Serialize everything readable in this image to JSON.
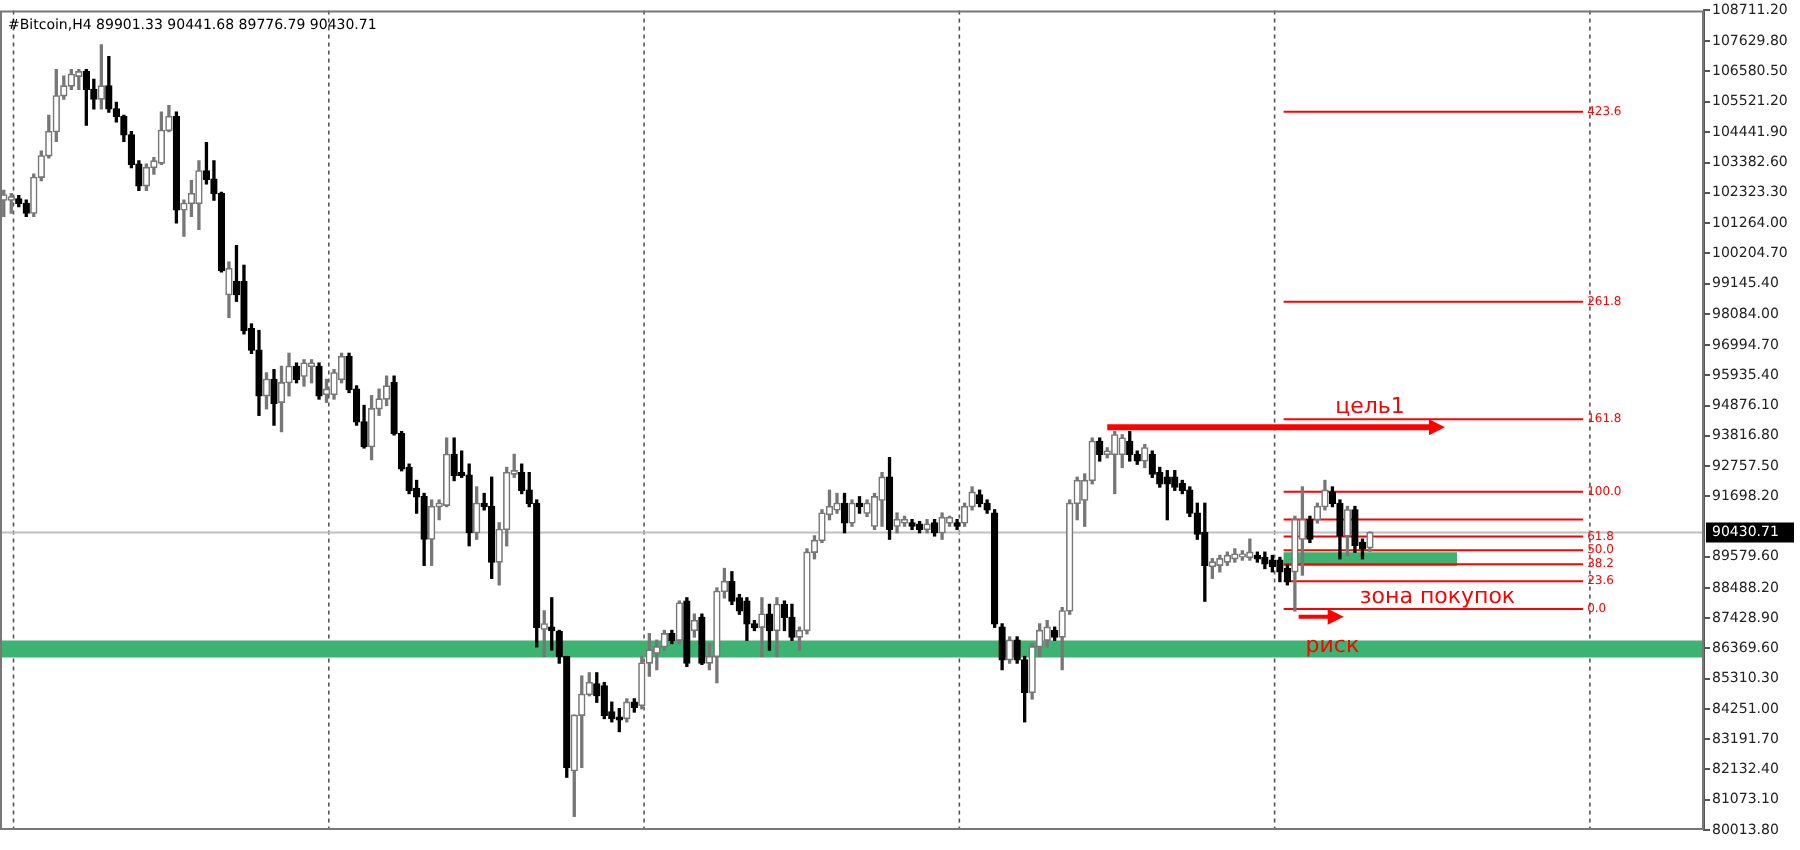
{
  "chart_data": {
    "type": "candlestick",
    "title": "#Bitcoin,H4 89901.33 90441.68 89776.79 90430.71",
    "categories": [
      null,
      null,
      null,
      null,
      null,
      null,
      null,
      null,
      null,
      null,
      null,
      null,
      null,
      null,
      null,
      null,
      null,
      null,
      null,
      null,
      null,
      null,
      null,
      null,
      null,
      null,
      null,
      null,
      null,
      null,
      null,
      null,
      null,
      null,
      null,
      null,
      null,
      null,
      null,
      null,
      null,
      null,
      null,
      null,
      null,
      null,
      null,
      null,
      null,
      null,
      null,
      null,
      null,
      null,
      null,
      null,
      null,
      null,
      null,
      null,
      null,
      null,
      null,
      null,
      null,
      null,
      null,
      null,
      null,
      null,
      null,
      null,
      null,
      null,
      null,
      null,
      null,
      null,
      null,
      null,
      null,
      null,
      null,
      null,
      null,
      null,
      null,
      null,
      null,
      null,
      null,
      null,
      null,
      null,
      null,
      null,
      null,
      null,
      null,
      null,
      null,
      null,
      null,
      null,
      null,
      null,
      null,
      null,
      null,
      null,
      null,
      null,
      null,
      null,
      null,
      null,
      null,
      null,
      null,
      null,
      null,
      null,
      null,
      null,
      null,
      null,
      null,
      null,
      null,
      null,
      null,
      null,
      null,
      null,
      null,
      null,
      null,
      null,
      null,
      null,
      null,
      null,
      null,
      null,
      null,
      null,
      null,
      null,
      null,
      null,
      null,
      null,
      null,
      null,
      null,
      null,
      null,
      null,
      null,
      null,
      null,
      null,
      null,
      null,
      null,
      null,
      null,
      null,
      null,
      null,
      null,
      null,
      null,
      null,
      null,
      null,
      null,
      null,
      null,
      null,
      null,
      null,
      null,
      null,
      null,
      null,
      null,
      null,
      null,
      null,
      null,
      null,
      null,
      null,
      null,
      null,
      null,
      null,
      null,
      null,
      null,
      null,
      null,
      null,
      null,
      null,
      null,
      null,
      null,
      null,
      null,
      null,
      null,
      null,
      null,
      null,
      null,
      null,
      null,
      null,
      null,
      null,
      null,
      null,
      null,
      null,
      null
    ],
    "ohlc": [
      [
        102068,
        102410,
        101497,
        102251
      ],
      [
        102068,
        102296,
        101611,
        102182
      ],
      [
        102114,
        102228,
        101840,
        101954
      ],
      [
        101954,
        102068,
        101497,
        101611
      ],
      [
        101611,
        102981,
        101497,
        102867
      ],
      [
        102867,
        103780,
        102753,
        103620
      ],
      [
        103620,
        105036,
        103552,
        104465
      ],
      [
        104465,
        106634,
        104123,
        105721
      ],
      [
        105721,
        106406,
        105607,
        106063
      ],
      [
        106063,
        106634,
        105949,
        106474
      ],
      [
        106406,
        106634,
        105949,
        106565
      ],
      [
        106565,
        106634,
        104693,
        105949
      ],
      [
        105949,
        106292,
        105264,
        105607
      ],
      [
        105607,
        107502,
        105264,
        106063
      ],
      [
        106063,
        107091,
        105150,
        105264
      ],
      [
        105264,
        105493,
        104808,
        104990
      ],
      [
        104990,
        105036,
        104123,
        104351
      ],
      [
        104351,
        104465,
        103210,
        103324
      ],
      [
        103324,
        103438,
        102410,
        102570
      ],
      [
        102570,
        103324,
        102410,
        103210
      ],
      [
        103210,
        103552,
        102981,
        103438
      ],
      [
        103369,
        105150,
        103324,
        104511
      ],
      [
        104511,
        105378,
        104465,
        104990
      ],
      [
        104990,
        105150,
        101269,
        101726
      ],
      [
        101726,
        102068,
        100812,
        101954
      ],
      [
        101954,
        102753,
        101497,
        102296
      ],
      [
        101954,
        103438,
        101041,
        103095
      ],
      [
        103095,
        104077,
        102639,
        102799
      ],
      [
        102799,
        103438,
        102068,
        102296
      ],
      [
        102296,
        102342,
        99557,
        99602
      ],
      [
        98758,
        99899,
        97959,
        99671
      ],
      [
        99214,
        100470,
        98529,
        98758
      ],
      [
        99214,
        99785,
        97388,
        97502
      ],
      [
        97570,
        97730,
        96703,
        96817
      ],
      [
        96817,
        97502,
        94534,
        95219
      ],
      [
        95219,
        96018,
        94763,
        95790
      ],
      [
        95790,
        96132,
        94192,
        94945
      ],
      [
        94991,
        96247,
        93964,
        95676
      ],
      [
        95676,
        96703,
        95219,
        96247
      ],
      [
        96247,
        96361,
        95676,
        95790
      ],
      [
        95904,
        96475,
        95562,
        96361
      ],
      [
        96247,
        96475,
        95676,
        96361
      ],
      [
        96247,
        96361,
        95105,
        95219
      ],
      [
        95265,
        95790,
        94991,
        95447
      ],
      [
        95265,
        96132,
        95105,
        96018
      ],
      [
        95790,
        96703,
        95676,
        96589
      ],
      [
        96589,
        96703,
        95333,
        95447
      ],
      [
        95447,
        95562,
        94192,
        94306
      ],
      [
        94306,
        94877,
        93393,
        93438
      ],
      [
        93438,
        95219,
        92982,
        94763
      ],
      [
        94763,
        95447,
        94534,
        95105
      ],
      [
        95105,
        95904,
        94877,
        95562
      ],
      [
        95676,
        95904,
        93849,
        93895
      ],
      [
        93895,
        93964,
        92594,
        92662
      ],
      [
        92707,
        92822,
        91795,
        91909
      ],
      [
        91977,
        92251,
        91110,
        91681
      ],
      [
        91681,
        91795,
        89283,
        90197
      ],
      [
        90197,
        91566,
        89283,
        91338
      ],
      [
        91338,
        91566,
        90881,
        91452
      ],
      [
        91384,
        93735,
        91338,
        93164
      ],
      [
        93164,
        93735,
        92251,
        92434
      ],
      [
        92525,
        93279,
        92365,
        92434
      ],
      [
        92434,
        92822,
        89968,
        90425
      ],
      [
        90425,
        92023,
        90197,
        91452
      ],
      [
        91452,
        91795,
        91224,
        91338
      ],
      [
        91338,
        92365,
        88827,
        89397
      ],
      [
        89397,
        90767,
        88599,
        90539
      ],
      [
        90539,
        92707,
        89968,
        92525
      ],
      [
        92479,
        93164,
        92365,
        92594
      ],
      [
        92525,
        92822,
        91795,
        91909
      ],
      [
        91909,
        92525,
        91338,
        91452
      ],
      [
        91452,
        91566,
        86429,
        87114
      ],
      [
        87046,
        87685,
        86087,
        87229
      ],
      [
        87114,
        88142,
        86315,
        87000
      ],
      [
        86955,
        87000,
        85859,
        86087
      ],
      [
        86087,
        86087,
        81864,
        82206
      ],
      [
        82092,
        84032,
        80494,
        84032
      ],
      [
        84032,
        85402,
        82206,
        84763
      ],
      [
        84763,
        85516,
        84717,
        85174
      ],
      [
        85128,
        85516,
        84489,
        84717
      ],
      [
        85060,
        85174,
        83918,
        84032
      ],
      [
        84146,
        84489,
        83804,
        83918
      ],
      [
        83964,
        84261,
        83462,
        83872
      ],
      [
        83918,
        84603,
        83804,
        84489
      ],
      [
        84489,
        84603,
        84146,
        84306
      ],
      [
        84375,
        86087,
        84261,
        85859
      ],
      [
        85859,
        86886,
        85402,
        86315
      ],
      [
        86201,
        86658,
        85630,
        86429
      ],
      [
        86429,
        87000,
        86315,
        86886
      ],
      [
        86886,
        87000,
        86544,
        86658
      ],
      [
        86658,
        88028,
        86544,
        87959
      ],
      [
        88028,
        88142,
        85745,
        85859
      ],
      [
        87000,
        87571,
        86772,
        87343
      ],
      [
        87457,
        87571,
        85813,
        85859
      ],
      [
        85859,
        86544,
        85630,
        86087
      ],
      [
        86087,
        88484,
        85174,
        88370
      ],
      [
        88370,
        89169,
        88142,
        88712
      ],
      [
        88712,
        89055,
        87913,
        88028
      ],
      [
        88142,
        88256,
        87571,
        87685
      ],
      [
        88028,
        88142,
        86658,
        87229
      ],
      [
        87229,
        87343,
        87000,
        87114
      ],
      [
        87114,
        88142,
        86087,
        87571
      ],
      [
        87571,
        87913,
        86315,
        87000
      ],
      [
        87000,
        88142,
        86087,
        87913
      ],
      [
        87913,
        88028,
        87000,
        87457
      ],
      [
        87457,
        87913,
        86658,
        86772
      ],
      [
        86772,
        87114,
        86315,
        87000
      ],
      [
        87000,
        89854,
        86886,
        89740
      ],
      [
        89740,
        90311,
        89512,
        90151
      ],
      [
        90151,
        91224,
        90083,
        91110
      ],
      [
        91064,
        91909,
        90881,
        91338
      ],
      [
        91224,
        91795,
        91110,
        91452
      ],
      [
        91452,
        91795,
        90425,
        90767
      ],
      [
        90767,
        91566,
        90653,
        91452
      ],
      [
        91452,
        91681,
        91110,
        91338
      ],
      [
        91110,
        91566,
        90995,
        91452
      ],
      [
        90653,
        91795,
        90539,
        91681
      ],
      [
        91566,
        92525,
        90653,
        92365
      ],
      [
        92365,
        93050,
        90197,
        90539
      ],
      [
        90653,
        91110,
        90425,
        90881
      ],
      [
        90767,
        90995,
        90653,
        90881
      ],
      [
        90767,
        90881,
        90539,
        90653
      ],
      [
        90722,
        90813,
        90425,
        90539
      ],
      [
        90539,
        90881,
        90425,
        90722
      ],
      [
        90767,
        90881,
        90311,
        90425
      ],
      [
        90425,
        91110,
        90197,
        90950
      ],
      [
        90767,
        90995,
        90653,
        90950
      ],
      [
        90767,
        90881,
        90539,
        90653
      ],
      [
        90767,
        91452,
        90653,
        91338
      ],
      [
        91338,
        92023,
        91224,
        91840
      ],
      [
        91749,
        91909,
        91338,
        91452
      ],
      [
        91452,
        91566,
        91110,
        91224
      ],
      [
        91110,
        91224,
        87114,
        87229
      ],
      [
        87114,
        87229,
        85630,
        85973
      ],
      [
        85973,
        86772,
        85859,
        86658
      ],
      [
        86658,
        86772,
        85859,
        85973
      ],
      [
        85973,
        86087,
        83804,
        84831
      ],
      [
        84831,
        86544,
        84603,
        86429
      ],
      [
        86429,
        87229,
        86087,
        87000
      ],
      [
        86658,
        87343,
        86429,
        87114
      ],
      [
        87000,
        87114,
        86658,
        86772
      ],
      [
        86772,
        87799,
        85630,
        87685
      ],
      [
        87685,
        91566,
        87571,
        91452
      ],
      [
        91452,
        92365,
        90881,
        92251
      ],
      [
        91566,
        92479,
        90653,
        92251
      ],
      [
        92251,
        93735,
        92137,
        93621
      ],
      [
        93621,
        93735,
        92936,
        93164
      ],
      [
        93164,
        93393,
        93050,
        93279
      ],
      [
        93164,
        93964,
        91795,
        93849
      ],
      [
        93164,
        93849,
        92707,
        93735
      ],
      [
        93621,
        93964,
        92936,
        93164
      ],
      [
        93164,
        93279,
        92822,
        92936
      ],
      [
        92936,
        93507,
        92707,
        93393
      ],
      [
        93164,
        93279,
        92365,
        92479
      ],
      [
        92525,
        92707,
        92023,
        92137
      ],
      [
        92365,
        92594,
        90881,
        92137
      ],
      [
        92365,
        92594,
        91909,
        92023
      ],
      [
        92137,
        92251,
        91795,
        91909
      ],
      [
        91909,
        92023,
        90995,
        91110
      ],
      [
        91110,
        91452,
        90197,
        90379
      ],
      [
        90425,
        91452,
        88028,
        89283
      ],
      [
        89238,
        89512,
        88827,
        89397
      ],
      [
        89283,
        89626,
        89055,
        89512
      ],
      [
        89397,
        89740,
        89283,
        89626
      ],
      [
        89512,
        89854,
        89397,
        89672
      ],
      [
        89580,
        89786,
        89466,
        89672
      ],
      [
        89557,
        90197,
        89466,
        89740
      ],
      [
        89626,
        89740,
        89397,
        89512
      ],
      [
        89557,
        89740,
        89169,
        89329
      ],
      [
        89466,
        89626,
        89055,
        89238
      ],
      [
        89466,
        89557,
        88712,
        89055
      ],
      [
        89169,
        89283,
        88599,
        88712
      ],
      [
        89055,
        90995,
        87685,
        90881
      ],
      [
        90197,
        92023,
        88941,
        90881
      ],
      [
        90881,
        90995,
        90083,
        90197
      ],
      [
        90881,
        91452,
        90767,
        91338
      ],
      [
        91338,
        92251,
        91224,
        91909
      ],
      [
        91840,
        92023,
        91338,
        91452
      ],
      [
        91452,
        91566,
        89512,
        90311
      ],
      [
        90311,
        91338,
        89626,
        91224
      ],
      [
        91224,
        91338,
        89740,
        89968
      ],
      [
        90083,
        90197,
        89512,
        89854
      ],
      [
        89901.33,
        90441.68,
        89776.79,
        90430.71
      ],
      null,
      null,
      null,
      null,
      null,
      null,
      null,
      null,
      null,
      null,
      null,
      null,
      null,
      null,
      null,
      null,
      null,
      null,
      null,
      null,
      null,
      null,
      null,
      null,
      null,
      null,
      null,
      null,
      null,
      null,
      null,
      null,
      null,
      null,
      null,
      null,
      null,
      null,
      null,
      null,
      null,
      null,
      null,
      null
    ],
    "ylim": [
      80013.8,
      108711.2
    ],
    "yticks": [
      {
        "value": 108711.2,
        "label": "108711.20"
      },
      {
        "value": 107629.8,
        "label": "107629.80"
      },
      {
        "value": 106580.5,
        "label": "106580.50"
      },
      {
        "value": 105521.2,
        "label": "105521.20"
      },
      {
        "value": 104441.9,
        "label": "104441.90"
      },
      {
        "value": 103382.6,
        "label": "103382.60"
      },
      {
        "value": 102323.3,
        "label": "102323.30"
      },
      {
        "value": 101264,
        "label": "101264.00"
      },
      {
        "value": 100204.7,
        "label": "100204.70"
      },
      {
        "value": 99145.4,
        "label": "99145.40"
      },
      {
        "value": 98084,
        "label": "98084.00"
      },
      {
        "value": 96994.7,
        "label": "96994.70"
      },
      {
        "value": 95935.4,
        "label": "95935.40"
      },
      {
        "value": 94876.1,
        "label": "94876.10"
      },
      {
        "value": 93816.8,
        "label": "93816.80"
      },
      {
        "value": 92757.5,
        "label": "92757.50"
      },
      {
        "value": 91698.2,
        "label": "91698.20"
      },
      {
        "value": 89579.6,
        "label": "89579.60"
      },
      {
        "value": 88488.2,
        "label": "88488.20"
      },
      {
        "value": 87428.9,
        "label": "87428.90"
      },
      {
        "value": 86369.6,
        "label": "86369.60"
      },
      {
        "value": 85310.3,
        "label": "85310.30"
      },
      {
        "value": 84251,
        "label": "84251.00"
      },
      {
        "value": 83191.7,
        "label": "83191.70"
      },
      {
        "value": 82132.4,
        "label": "82132.40"
      },
      {
        "value": 81073.1,
        "label": "81073.10"
      },
      {
        "value": 80013.8,
        "label": "80013.80"
      }
    ],
    "tick_labels": "y",
    "ref_lines": [
      {
        "axis": "y",
        "value": 90430.71,
        "label": "90430.71",
        "color": "#c0c0c0"
      },
      {
        "axis": "y",
        "value": 105160,
        "color": "#ff0000"
      },
      {
        "axis": "y",
        "value": 98510,
        "color": "#ff0000"
      },
      {
        "axis": "y",
        "value": 94400,
        "color": "#ff0000"
      },
      {
        "axis": "y",
        "value": 91860,
        "color": "#ff0000"
      },
      {
        "axis": "y",
        "value": 90890,
        "color": "#ff0000"
      },
      {
        "axis": "y",
        "value": 90290,
        "color": "#ff0000"
      },
      {
        "axis": "y",
        "value": 89805,
        "color": "#ff0000"
      },
      {
        "axis": "y",
        "value": 89320,
        "color": "#ff0000"
      },
      {
        "axis": "y",
        "value": 88720,
        "color": "#ff0000"
      },
      {
        "axis": "y",
        "value": 87750,
        "color": "#ff0000"
      }
    ],
    "bands": [
      {
        "axis": "y",
        "from": 86050,
        "to": 86650,
        "color": "#3cb371"
      },
      {
        "axis": "y",
        "from": 89260,
        "to": 89740,
        "label": "зона покупок",
        "color": "#3cb371"
      }
    ],
    "annotations": [
      {
        "text": "цель1",
        "y": 94120
      },
      {
        "text": "риск",
        "y": 87480
      },
      "423.6",
      "261.8",
      "161.8",
      "100.0",
      "61.8",
      "50.0",
      "38.2",
      "23.6",
      "0.0"
    ]
  }
}
